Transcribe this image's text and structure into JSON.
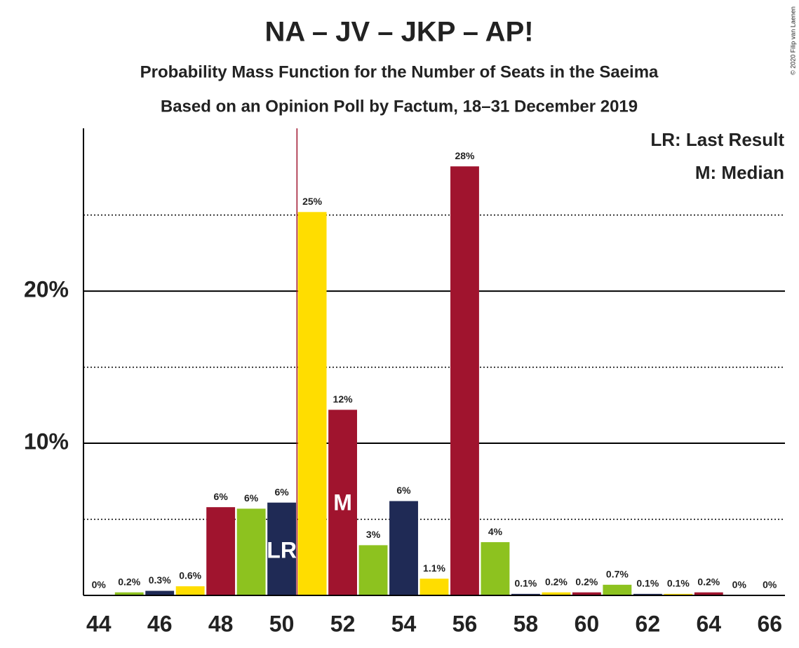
{
  "chart_data": {
    "type": "bar",
    "title": "NA – JV – JKP – AP!",
    "subtitle": "Probability Mass Function for the Number of Seats in the Saeima",
    "subtitle2": "Based on an Opinion Poll by Factum, 18–31 December 2019",
    "credit": "© 2020 Filip van Laenen",
    "x": [
      44,
      45,
      46,
      47,
      48,
      49,
      50,
      51,
      52,
      53,
      54,
      55,
      56,
      57,
      58,
      59,
      60,
      61,
      62,
      63,
      64,
      65,
      66
    ],
    "values": [
      0,
      0.2,
      0.3,
      0.6,
      5.8,
      5.7,
      6.1,
      25.2,
      12.2,
      3.3,
      6.2,
      1.1,
      28.2,
      3.5,
      0.1,
      0.2,
      0.2,
      0.7,
      0.1,
      0.1,
      0.2,
      0,
      0
    ],
    "value_labels": [
      "0%",
      "0.2%",
      "0.3%",
      "0.6%",
      "6%",
      "6%",
      "6%",
      "25%",
      "12%",
      "3%",
      "6%",
      "1.1%",
      "28%",
      "4%",
      "0.1%",
      "0.2%",
      "0.2%",
      "0.7%",
      "0.1%",
      "0.1%",
      "0.2%",
      "0%",
      "0%"
    ],
    "colors": [
      "#A0142E",
      "#8DC21F",
      "#1F2A55",
      "#FFDD00"
    ],
    "xlim": [
      43.5,
      66.5
    ],
    "xticks": [
      44,
      46,
      48,
      50,
      52,
      54,
      56,
      58,
      60,
      62,
      64,
      66
    ],
    "ylim": [
      0,
      30.7
    ],
    "yticks": [
      {
        "value": 10,
        "label": "10%"
      },
      {
        "value": 20,
        "label": "20%"
      }
    ],
    "minor_yticks": [
      5,
      15,
      25
    ],
    "grid": true,
    "last_result": 50,
    "last_result_label": "LR",
    "median": 52,
    "median_label": "M",
    "legend": [
      "LR: Last Result",
      "M: Median"
    ],
    "legend_position": "upper right",
    "last_result_line_color": "#A0142E"
  }
}
